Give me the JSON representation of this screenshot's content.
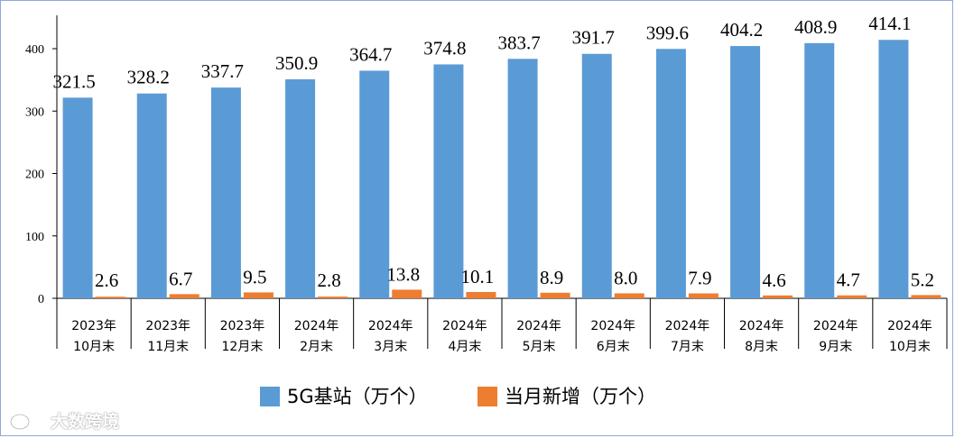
{
  "chart_data": {
    "type": "bar",
    "categories": [
      [
        "2023年",
        "10月末"
      ],
      [
        "2023年",
        "11月末"
      ],
      [
        "2023年",
        "12月末"
      ],
      [
        "2024年",
        "2月末"
      ],
      [
        "2024年",
        "3月末"
      ],
      [
        "2024年",
        "4月末"
      ],
      [
        "2024年",
        "5月末"
      ],
      [
        "2024年",
        "6月末"
      ],
      [
        "2024年",
        "7月末"
      ],
      [
        "2024年",
        "8月末"
      ],
      [
        "2024年",
        "9月末"
      ],
      [
        "2024年",
        "10月末"
      ]
    ],
    "series": [
      {
        "name": "5G基站（万个）",
        "color": "#5b9bd5",
        "values": [
          321.5,
          328.2,
          337.7,
          350.9,
          364.7,
          374.8,
          383.7,
          391.7,
          399.6,
          404.2,
          408.9,
          414.1
        ],
        "labels": [
          "321.5",
          "328.2",
          "337.7",
          "350.9",
          "364.7",
          "374.8",
          "383.7",
          "391.7",
          "399.6",
          "404.2",
          "408.9",
          "414.1"
        ]
      },
      {
        "name": "当月新增（万个）",
        "color": "#ed7d31",
        "values": [
          2.6,
          6.7,
          9.5,
          2.8,
          13.8,
          10.1,
          8.9,
          8.0,
          7.9,
          4.6,
          4.7,
          5.2
        ],
        "labels": [
          "2.6",
          "6.7",
          "9.5",
          "2.8",
          "13.8",
          "10.1",
          "8.9",
          "8.0",
          "7.9",
          "4.6",
          "4.7",
          "5.2"
        ]
      }
    ],
    "ylim": [
      0,
      450
    ],
    "yticks": [
      0,
      100,
      200,
      300,
      400
    ],
    "title": "",
    "xlabel": "",
    "ylabel": "",
    "legend": "bottom"
  },
  "watermark": {
    "text": "大数跨境"
  }
}
